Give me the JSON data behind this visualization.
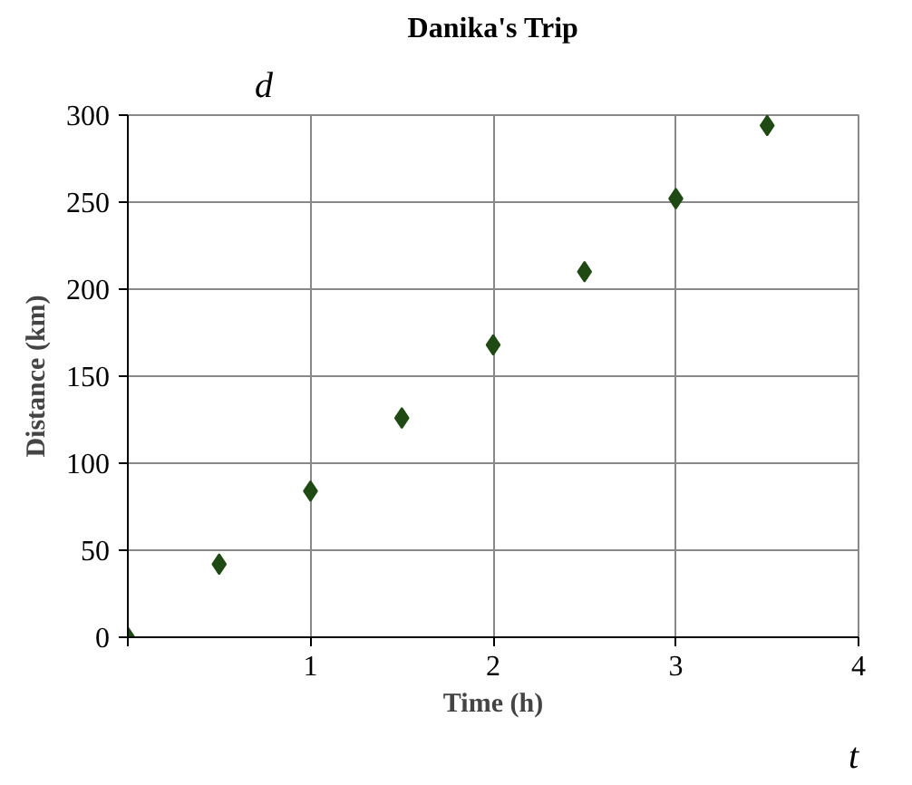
{
  "chart_data": {
    "type": "scatter",
    "title": "Danika's Trip",
    "xlabel": "Time (h)",
    "ylabel": "Distance (km)",
    "x": [
      0,
      0.5,
      1,
      1.5,
      2,
      2.5,
      3,
      3.5
    ],
    "series": [
      {
        "color": "#1f4a14",
        "values": [
          0,
          42,
          84,
          126,
          168,
          210,
          252,
          294
        ]
      }
    ],
    "xlim": [
      0,
      4
    ],
    "ylim": [
      0,
      300
    ],
    "xticks": [
      {
        "value": 0,
        "label": null
      },
      1,
      2,
      3,
      4
    ],
    "yticks": [
      0,
      50,
      100,
      150,
      200,
      250,
      300
    ],
    "annotations": [
      "d",
      "t"
    ],
    "grid": true,
    "marker": "diamond"
  }
}
